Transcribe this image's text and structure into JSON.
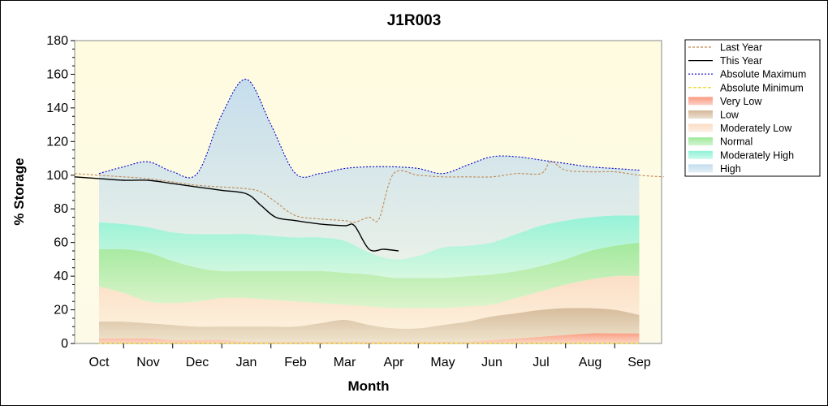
{
  "chart_data": {
    "type": "area",
    "title": "J1R003",
    "xlabel": "Month",
    "ylabel": "% Storage",
    "ylim": [
      0,
      180
    ],
    "yticks": [
      0,
      20,
      40,
      60,
      80,
      100,
      120,
      140,
      160,
      180
    ],
    "categories": [
      "Oct",
      "Nov",
      "Dec",
      "Jan",
      "Feb",
      "Mar",
      "Apr",
      "May",
      "Jun",
      "Jul",
      "Aug",
      "Sep"
    ],
    "grid": false,
    "legend_position": "right",
    "band_x": [
      0,
      0.5,
      1,
      1.5,
      2,
      2.5,
      3,
      3.5,
      4,
      4.5,
      5,
      5.5,
      6,
      6.5,
      7,
      7.5,
      8,
      8.5,
      9,
      9.5,
      10,
      10.5,
      11
    ],
    "bands": [
      {
        "name": "Very Low",
        "color": "#fa9a80",
        "lower": [
          0,
          0,
          0,
          0,
          0,
          0,
          0,
          0,
          0,
          0,
          0,
          0,
          0,
          0,
          0,
          0,
          0,
          0,
          0,
          0,
          0,
          0,
          0
        ],
        "upper": [
          3,
          3,
          3,
          2,
          2,
          2,
          1,
          1,
          1,
          1,
          1,
          1,
          1,
          1,
          1,
          1,
          2,
          3,
          4,
          5,
          6,
          6,
          6
        ]
      },
      {
        "name": "Low",
        "color": "#d4b898",
        "lower": [
          3,
          3,
          3,
          2,
          2,
          2,
          1,
          1,
          1,
          1,
          1,
          1,
          1,
          1,
          1,
          1,
          2,
          3,
          4,
          5,
          6,
          6,
          6
        ],
        "upper": [
          13,
          13,
          12,
          11,
          10,
          10,
          10,
          10,
          10,
          12,
          14,
          11,
          9,
          9,
          11,
          13,
          16,
          18,
          20,
          21,
          21,
          20,
          17
        ]
      },
      {
        "name": "Moderately Low",
        "color": "#fbdcc4",
        "lower": [
          13,
          13,
          12,
          11,
          10,
          10,
          10,
          10,
          10,
          12,
          14,
          11,
          9,
          9,
          11,
          13,
          16,
          18,
          20,
          21,
          21,
          20,
          17
        ],
        "upper": [
          34,
          30,
          25,
          24,
          25,
          27,
          27,
          26,
          25,
          24,
          23,
          22,
          21,
          21,
          21,
          22,
          23,
          27,
          31,
          35,
          38,
          40,
          40
        ]
      },
      {
        "name": "Normal",
        "color": "#9ee89a",
        "lower": [
          34,
          30,
          25,
          24,
          25,
          27,
          27,
          26,
          25,
          24,
          23,
          22,
          21,
          21,
          21,
          22,
          23,
          27,
          31,
          35,
          38,
          40,
          40
        ],
        "upper": [
          56,
          56,
          54,
          49,
          45,
          43,
          43,
          43,
          43,
          43,
          42,
          41,
          39,
          39,
          39,
          40,
          41,
          43,
          46,
          50,
          55,
          58,
          60
        ]
      },
      {
        "name": "Moderately High",
        "color": "#90f2d6",
        "lower": [
          56,
          56,
          54,
          49,
          45,
          43,
          43,
          43,
          43,
          43,
          42,
          41,
          39,
          39,
          39,
          40,
          41,
          43,
          46,
          50,
          55,
          58,
          60
        ],
        "upper": [
          72,
          71,
          69,
          66,
          65,
          65,
          65,
          64,
          63,
          63,
          61,
          54,
          50,
          52,
          57,
          58,
          60,
          65,
          70,
          73,
          75,
          76,
          76
        ]
      },
      {
        "name": "High",
        "color": "#c2dced",
        "lower": [
          72,
          71,
          69,
          66,
          65,
          65,
          65,
          64,
          63,
          63,
          61,
          54,
          50,
          52,
          57,
          58,
          60,
          65,
          70,
          73,
          75,
          76,
          76
        ],
        "upper": [
          101,
          105,
          108,
          102,
          101,
          136,
          157,
          130,
          101,
          101,
          104,
          105,
          105,
          104,
          101,
          106,
          111,
          111,
          109,
          107,
          105,
          104,
          103
        ]
      }
    ],
    "series": [
      {
        "name": "Last Year",
        "color": "#c28a55",
        "dash": "3,2",
        "x": [
          -0.5,
          0,
          0.5,
          1,
          1.5,
          2,
          2.5,
          3,
          3.3,
          3.6,
          4,
          4.5,
          5,
          5.2,
          5.5,
          5.7,
          6,
          6.5,
          7,
          7.5,
          8,
          8.5,
          9,
          9.2,
          9.5,
          10,
          10.5,
          11,
          11.5
        ],
        "y": [
          101,
          100,
          99,
          98,
          96,
          94,
          93,
          92,
          90,
          84,
          76,
          74,
          73,
          72,
          75,
          74,
          101,
          100,
          99,
          99,
          99,
          101,
          101,
          108,
          103,
          102,
          102,
          100,
          99
        ]
      },
      {
        "name": "This Year",
        "color": "#000000",
        "dash": "",
        "x": [
          -0.5,
          0,
          0.5,
          1,
          1.5,
          2,
          2.5,
          3,
          3.3,
          3.6,
          4,
          4.5,
          5,
          5.2,
          5.5,
          5.8,
          6.1
        ],
        "y": [
          99,
          98,
          97,
          97,
          95,
          93,
          91,
          89,
          82,
          75,
          73,
          71,
          70,
          70,
          56,
          56,
          55
        ]
      },
      {
        "name": "Absolute Maximum",
        "color": "#0000cc",
        "dash": "2,2",
        "x": [
          0,
          0.5,
          1,
          1.5,
          2,
          2.5,
          3,
          3.5,
          4,
          4.5,
          5,
          5.5,
          6,
          6.5,
          7,
          7.5,
          8,
          8.5,
          9,
          9.5,
          10,
          10.5,
          11
        ],
        "y": [
          101,
          105,
          108,
          102,
          101,
          136,
          157,
          130,
          101,
          101,
          104,
          105,
          105,
          104,
          101,
          106,
          111,
          111,
          109,
          107,
          105,
          104,
          103
        ]
      },
      {
        "name": "Absolute Minimum",
        "color": "#e0d400",
        "dash": "4,2",
        "x": [
          0,
          0.5,
          1,
          1.5,
          2,
          2.5,
          3,
          3.5,
          4,
          4.5,
          5,
          5.5,
          6,
          6.5,
          7,
          7.5,
          8,
          8.5,
          9,
          9.5,
          10,
          10.5,
          11
        ],
        "y": [
          0,
          0,
          0,
          0,
          0,
          0,
          0,
          0,
          0,
          0,
          0,
          0,
          0,
          0,
          0,
          0,
          0,
          0,
          0,
          0,
          0,
          0,
          0
        ]
      }
    ],
    "legend": [
      {
        "label": "Last Year",
        "kind": "line",
        "color": "#c28a55",
        "dash": "3,2"
      },
      {
        "label": "This Year",
        "kind": "line",
        "color": "#000000",
        "dash": ""
      },
      {
        "label": "Absolute Maximum",
        "kind": "line",
        "color": "#0000cc",
        "dash": "2,2"
      },
      {
        "label": "Absolute Minimum",
        "kind": "line",
        "color": "#e0d400",
        "dash": "4,2"
      },
      {
        "label": "Very Low",
        "kind": "band",
        "color": "#fa9a80"
      },
      {
        "label": "Low",
        "kind": "band",
        "color": "#d4b898"
      },
      {
        "label": "Moderately Low",
        "kind": "band",
        "color": "#fbdcc4"
      },
      {
        "label": "Normal",
        "kind": "band",
        "color": "#9ee89a"
      },
      {
        "label": "Moderately High",
        "kind": "band",
        "color": "#90f2d6"
      },
      {
        "label": "High",
        "kind": "band",
        "color": "#c2dced"
      }
    ]
  }
}
